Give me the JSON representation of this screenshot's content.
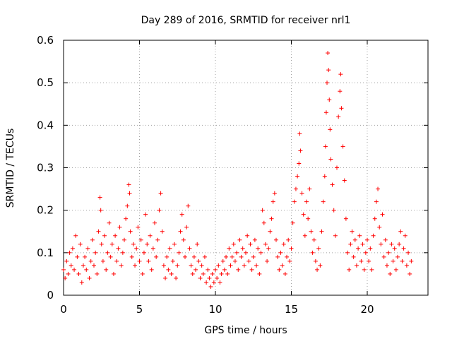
{
  "chart_data": {
    "type": "scatter",
    "title": "Day 289 of 2016, SRMTID for receiver nrl1",
    "xlabel": "GPS time / hours",
    "ylabel": "SRMTID / TECUs",
    "xlim": [
      0,
      24
    ],
    "ylim": [
      0,
      0.6
    ],
    "xticks": [
      0,
      5,
      10,
      15,
      20
    ],
    "yticks": [
      0,
      0.1,
      0.2,
      0.3,
      0.4,
      0.5,
      0.6
    ],
    "xtick_labels": [
      "0",
      "5",
      "10",
      "15",
      "20"
    ],
    "ytick_labels": [
      "0",
      "0.1",
      "0.2",
      "0.3",
      "0.4",
      "0.5",
      "0.6"
    ],
    "grid": true,
    "marker": "+",
    "color": "#ff0000",
    "points": [
      [
        0.0,
        0.06
      ],
      [
        0.1,
        0.04
      ],
      [
        0.2,
        0.08
      ],
      [
        0.3,
        0.05
      ],
      [
        0.4,
        0.1
      ],
      [
        0.5,
        0.07
      ],
      [
        0.6,
        0.11
      ],
      [
        0.7,
        0.06
      ],
      [
        0.8,
        0.14
      ],
      [
        0.9,
        0.09
      ],
      [
        1.0,
        0.05
      ],
      [
        1.1,
        0.12
      ],
      [
        1.2,
        0.03
      ],
      [
        1.3,
        0.07
      ],
      [
        1.4,
        0.09
      ],
      [
        1.5,
        0.06
      ],
      [
        1.6,
        0.11
      ],
      [
        1.7,
        0.04
      ],
      [
        1.8,
        0.08
      ],
      [
        1.9,
        0.13
      ],
      [
        2.0,
        0.07
      ],
      [
        2.1,
        0.1
      ],
      [
        2.2,
        0.05
      ],
      [
        2.3,
        0.15
      ],
      [
        2.4,
        0.23
      ],
      [
        2.45,
        0.2
      ],
      [
        2.5,
        0.12
      ],
      [
        2.6,
        0.08
      ],
      [
        2.7,
        0.14
      ],
      [
        2.8,
        0.06
      ],
      [
        2.9,
        0.1
      ],
      [
        3.0,
        0.17
      ],
      [
        3.1,
        0.09
      ],
      [
        3.2,
        0.12
      ],
      [
        3.3,
        0.05
      ],
      [
        3.4,
        0.14
      ],
      [
        3.5,
        0.08
      ],
      [
        3.6,
        0.11
      ],
      [
        3.7,
        0.16
      ],
      [
        3.8,
        0.07
      ],
      [
        3.9,
        0.1
      ],
      [
        4.0,
        0.13
      ],
      [
        4.1,
        0.18
      ],
      [
        4.2,
        0.21
      ],
      [
        4.3,
        0.26
      ],
      [
        4.35,
        0.24
      ],
      [
        4.4,
        0.15
      ],
      [
        4.5,
        0.09
      ],
      [
        4.6,
        0.12
      ],
      [
        4.7,
        0.07
      ],
      [
        4.8,
        0.11
      ],
      [
        4.9,
        0.16
      ],
      [
        5.0,
        0.08
      ],
      [
        5.1,
        0.13
      ],
      [
        5.2,
        0.05
      ],
      [
        5.3,
        0.1
      ],
      [
        5.4,
        0.19
      ],
      [
        5.5,
        0.12
      ],
      [
        5.6,
        0.08
      ],
      [
        5.7,
        0.14
      ],
      [
        5.8,
        0.06
      ],
      [
        5.9,
        0.11
      ],
      [
        6.0,
        0.17
      ],
      [
        6.1,
        0.09
      ],
      [
        6.2,
        0.13
      ],
      [
        6.3,
        0.2
      ],
      [
        6.4,
        0.24
      ],
      [
        6.5,
        0.15
      ],
      [
        6.6,
        0.07
      ],
      [
        6.7,
        0.04
      ],
      [
        6.8,
        0.09
      ],
      [
        6.9,
        0.06
      ],
      [
        7.0,
        0.11
      ],
      [
        7.1,
        0.05
      ],
      [
        7.2,
        0.08
      ],
      [
        7.3,
        0.12
      ],
      [
        7.4,
        0.04
      ],
      [
        7.5,
        0.07
      ],
      [
        7.6,
        0.1
      ],
      [
        7.7,
        0.15
      ],
      [
        7.8,
        0.19
      ],
      [
        7.9,
        0.13
      ],
      [
        8.0,
        0.09
      ],
      [
        8.1,
        0.16
      ],
      [
        8.2,
        0.21
      ],
      [
        8.3,
        0.11
      ],
      [
        8.4,
        0.07
      ],
      [
        8.5,
        0.05
      ],
      [
        8.6,
        0.09
      ],
      [
        8.7,
        0.06
      ],
      [
        8.8,
        0.12
      ],
      [
        8.9,
        0.08
      ],
      [
        9.0,
        0.04
      ],
      [
        9.1,
        0.07
      ],
      [
        9.2,
        0.05
      ],
      [
        9.3,
        0.09
      ],
      [
        9.4,
        0.03
      ],
      [
        9.5,
        0.06
      ],
      [
        9.6,
        0.04
      ],
      [
        9.7,
        0.02
      ],
      [
        9.8,
        0.05
      ],
      [
        9.9,
        0.03
      ],
      [
        10.0,
        0.06
      ],
      [
        10.1,
        0.04
      ],
      [
        10.2,
        0.07
      ],
      [
        10.3,
        0.03
      ],
      [
        10.4,
        0.05
      ],
      [
        10.5,
        0.08
      ],
      [
        10.6,
        0.06
      ],
      [
        10.7,
        0.09
      ],
      [
        10.8,
        0.05
      ],
      [
        10.9,
        0.11
      ],
      [
        11.0,
        0.07
      ],
      [
        11.1,
        0.09
      ],
      [
        11.2,
        0.12
      ],
      [
        11.3,
        0.08
      ],
      [
        11.4,
        0.1
      ],
      [
        11.5,
        0.06
      ],
      [
        11.6,
        0.13
      ],
      [
        11.7,
        0.09
      ],
      [
        11.8,
        0.11
      ],
      [
        11.9,
        0.07
      ],
      [
        12.0,
        0.1
      ],
      [
        12.1,
        0.14
      ],
      [
        12.2,
        0.08
      ],
      [
        12.3,
        0.12
      ],
      [
        12.4,
        0.06
      ],
      [
        12.5,
        0.09
      ],
      [
        12.6,
        0.13
      ],
      [
        12.7,
        0.07
      ],
      [
        12.8,
        0.11
      ],
      [
        12.9,
        0.05
      ],
      [
        13.0,
        0.1
      ],
      [
        13.1,
        0.2
      ],
      [
        13.2,
        0.17
      ],
      [
        13.3,
        0.12
      ],
      [
        13.4,
        0.08
      ],
      [
        13.5,
        0.11
      ],
      [
        13.6,
        0.15
      ],
      [
        13.7,
        0.18
      ],
      [
        13.8,
        0.22
      ],
      [
        13.9,
        0.24
      ],
      [
        14.0,
        0.13
      ],
      [
        14.1,
        0.09
      ],
      [
        14.2,
        0.06
      ],
      [
        14.3,
        0.1
      ],
      [
        14.4,
        0.07
      ],
      [
        14.5,
        0.12
      ],
      [
        14.6,
        0.05
      ],
      [
        14.7,
        0.09
      ],
      [
        14.8,
        0.13
      ],
      [
        14.9,
        0.08
      ],
      [
        15.0,
        0.11
      ],
      [
        15.1,
        0.17
      ],
      [
        15.2,
        0.22
      ],
      [
        15.3,
        0.25
      ],
      [
        15.4,
        0.28
      ],
      [
        15.5,
        0.31
      ],
      [
        15.55,
        0.38
      ],
      [
        15.6,
        0.34
      ],
      [
        15.7,
        0.24
      ],
      [
        15.8,
        0.19
      ],
      [
        15.9,
        0.14
      ],
      [
        16.0,
        0.22
      ],
      [
        16.1,
        0.18
      ],
      [
        16.2,
        0.25
      ],
      [
        16.3,
        0.15
      ],
      [
        16.4,
        0.1
      ],
      [
        16.5,
        0.13
      ],
      [
        16.6,
        0.08
      ],
      [
        16.7,
        0.06
      ],
      [
        16.8,
        0.11
      ],
      [
        16.9,
        0.07
      ],
      [
        17.0,
        0.15
      ],
      [
        17.1,
        0.22
      ],
      [
        17.2,
        0.28
      ],
      [
        17.25,
        0.35
      ],
      [
        17.3,
        0.43
      ],
      [
        17.35,
        0.5
      ],
      [
        17.4,
        0.57
      ],
      [
        17.45,
        0.53
      ],
      [
        17.5,
        0.46
      ],
      [
        17.55,
        0.39
      ],
      [
        17.6,
        0.32
      ],
      [
        17.7,
        0.26
      ],
      [
        17.8,
        0.2
      ],
      [
        17.9,
        0.14
      ],
      [
        18.0,
        0.3
      ],
      [
        18.1,
        0.42
      ],
      [
        18.2,
        0.48
      ],
      [
        18.25,
        0.52
      ],
      [
        18.3,
        0.44
      ],
      [
        18.4,
        0.35
      ],
      [
        18.5,
        0.27
      ],
      [
        18.6,
        0.18
      ],
      [
        18.7,
        0.1
      ],
      [
        18.8,
        0.06
      ],
      [
        18.9,
        0.12
      ],
      [
        19.0,
        0.15
      ],
      [
        19.1,
        0.09
      ],
      [
        19.2,
        0.13
      ],
      [
        19.3,
        0.07
      ],
      [
        19.4,
        0.11
      ],
      [
        19.5,
        0.14
      ],
      [
        19.6,
        0.08
      ],
      [
        19.7,
        0.12
      ],
      [
        19.8,
        0.06
      ],
      [
        19.9,
        0.1
      ],
      [
        20.0,
        0.13
      ],
      [
        20.1,
        0.08
      ],
      [
        20.2,
        0.11
      ],
      [
        20.3,
        0.06
      ],
      [
        20.4,
        0.14
      ],
      [
        20.5,
        0.18
      ],
      [
        20.6,
        0.22
      ],
      [
        20.7,
        0.25
      ],
      [
        20.8,
        0.16
      ],
      [
        20.9,
        0.12
      ],
      [
        21.0,
        0.19
      ],
      [
        21.1,
        0.09
      ],
      [
        21.2,
        0.13
      ],
      [
        21.3,
        0.07
      ],
      [
        21.4,
        0.1
      ],
      [
        21.5,
        0.05
      ],
      [
        21.6,
        0.12
      ],
      [
        21.7,
        0.08
      ],
      [
        21.8,
        0.11
      ],
      [
        21.9,
        0.06
      ],
      [
        22.0,
        0.09
      ],
      [
        22.1,
        0.12
      ],
      [
        22.2,
        0.15
      ],
      [
        22.3,
        0.08
      ],
      [
        22.4,
        0.11
      ],
      [
        22.5,
        0.14
      ],
      [
        22.6,
        0.07
      ],
      [
        22.7,
        0.1
      ],
      [
        22.8,
        0.05
      ],
      [
        22.9,
        0.08
      ]
    ]
  }
}
